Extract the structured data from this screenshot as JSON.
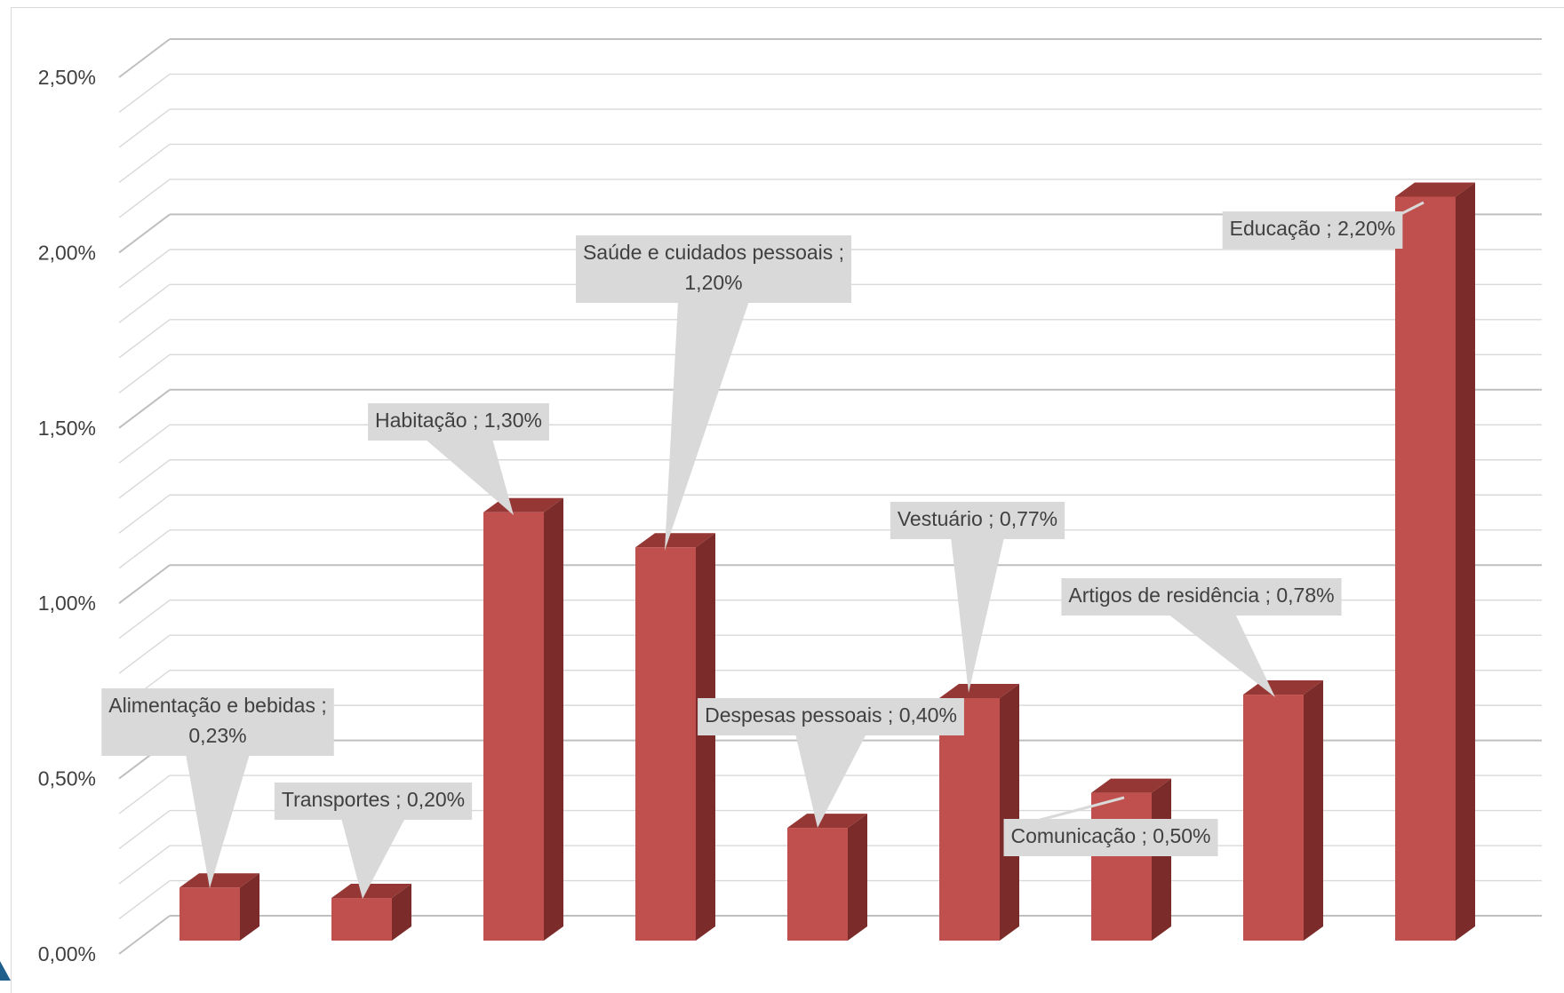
{
  "chart_data": {
    "type": "bar",
    "style": "3d-column",
    "categories": [
      "Alimentação e bebidas",
      "Transportes",
      "Habitação",
      "Saúde e cuidados pessoais",
      "Despesas pessoais",
      "Vestuário",
      "Comunicação",
      "Artigos de residência",
      "Educação"
    ],
    "values": [
      0.23,
      0.2,
      1.3,
      1.2,
      0.4,
      0.77,
      0.5,
      0.78,
      2.2
    ],
    "data_labels": [
      [
        "Alimentação e bebidas ;",
        "0,23%"
      ],
      [
        "Transportes ; 0,20%"
      ],
      [
        "Habitação ; 1,30%"
      ],
      [
        "Saúde e cuidados pessoais ;",
        "1,20%"
      ],
      [
        "Despesas pessoais ; 0,40%"
      ],
      [
        "Vestuário ; 0,77%"
      ],
      [
        "Comunicação ; 0,50%"
      ],
      [
        "Artigos de residência ; 0,78%"
      ],
      [
        "Educação ; 2,20%"
      ]
    ],
    "y_ticks": [
      "0,00%",
      "0,50%",
      "1,00%",
      "1,50%",
      "2,00%",
      "2,50%"
    ],
    "ylim": [
      0,
      2.5
    ],
    "y_unit": "%",
    "gridlines": true,
    "legend": "none",
    "title": "",
    "xlabel": "",
    "ylabel": "",
    "colors": {
      "bar_front": "#c0504d",
      "bar_side": "#7b2c2a",
      "bar_top": "#953734",
      "callout_bg": "#d9d9d9",
      "gridline": "#d9d9d9",
      "gridline_major": "#bfbfbf",
      "text": "#404040"
    }
  }
}
